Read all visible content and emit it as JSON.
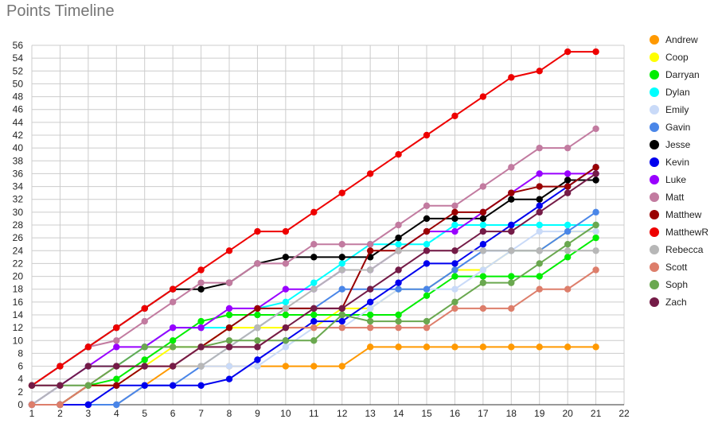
{
  "chart_data": {
    "type": "line",
    "title": "Points Timeline",
    "xlabel": "",
    "ylabel": "",
    "xlim": [
      1,
      22
    ],
    "ylim": [
      0,
      56
    ],
    "x_ticks": [
      1,
      2,
      3,
      4,
      5,
      6,
      7,
      8,
      9,
      10,
      11,
      12,
      13,
      14,
      15,
      16,
      17,
      18,
      19,
      20,
      21,
      22
    ],
    "y_ticks": [
      0,
      2,
      4,
      6,
      8,
      10,
      12,
      14,
      16,
      18,
      20,
      22,
      24,
      26,
      28,
      30,
      32,
      34,
      36,
      38,
      40,
      42,
      44,
      46,
      48,
      50,
      52,
      54,
      56
    ],
    "grid": true,
    "legend_position": "right",
    "x": [
      1,
      2,
      3,
      4,
      5,
      6,
      7,
      8,
      9,
      10,
      11,
      12,
      13,
      14,
      15,
      16,
      17,
      18,
      19,
      20,
      21
    ],
    "series": [
      {
        "name": "Andrew",
        "color": "#ff9900",
        "values": [
          0,
          0,
          0,
          0,
          3,
          6,
          6,
          6,
          6,
          6,
          6,
          6,
          9,
          9,
          9,
          9,
          9,
          9,
          9,
          9,
          9
        ]
      },
      {
        "name": "Coop",
        "color": "#ffff00",
        "values": [
          0,
          0,
          3,
          3,
          6,
          9,
          9,
          12,
          12,
          12,
          12,
          15,
          15,
          18,
          18,
          21,
          21,
          24,
          24,
          27,
          27
        ]
      },
      {
        "name": "Darryan",
        "color": "#00ee00",
        "values": [
          0,
          0,
          3,
          4,
          7,
          10,
          13,
          14,
          14,
          14,
          14,
          14,
          14,
          14,
          17,
          20,
          20,
          20,
          20,
          23,
          26
        ]
      },
      {
        "name": "Dylan",
        "color": "#00ffff",
        "values": [
          0,
          3,
          6,
          6,
          9,
          12,
          12,
          12,
          15,
          16,
          19,
          22,
          25,
          25,
          25,
          28,
          28,
          28,
          28,
          28,
          28
        ]
      },
      {
        "name": "Emily",
        "color": "#c9daf8",
        "values": [
          0,
          0,
          0,
          0,
          3,
          3,
          6,
          6,
          6,
          9,
          12,
          12,
          15,
          18,
          18,
          18,
          21,
          24,
          27,
          27,
          27
        ]
      },
      {
        "name": "Gavin",
        "color": "#4a86e8",
        "values": [
          0,
          0,
          0,
          0,
          3,
          3,
          6,
          9,
          12,
          15,
          15,
          18,
          18,
          18,
          18,
          21,
          24,
          24,
          24,
          27,
          30
        ]
      },
      {
        "name": "Jesse",
        "color": "#000000",
        "values": [
          3,
          6,
          9,
          12,
          15,
          18,
          18,
          19,
          22,
          23,
          23,
          23,
          23,
          26,
          29,
          29,
          29,
          32,
          32,
          35,
          35
        ]
      },
      {
        "name": "Kevin",
        "color": "#0000ee",
        "values": [
          0,
          0,
          0,
          3,
          3,
          3,
          3,
          4,
          7,
          10,
          13,
          13,
          16,
          19,
          22,
          22,
          25,
          28,
          31,
          34,
          37
        ]
      },
      {
        "name": "Luke",
        "color": "#9900ff",
        "values": [
          0,
          3,
          6,
          9,
          9,
          12,
          12,
          15,
          15,
          18,
          18,
          21,
          21,
          24,
          27,
          27,
          30,
          33,
          36,
          36,
          36
        ]
      },
      {
        "name": "Matt",
        "color": "#c27ba0",
        "values": [
          3,
          6,
          9,
          10,
          13,
          16,
          19,
          19,
          22,
          22,
          25,
          25,
          25,
          28,
          31,
          31,
          34,
          37,
          40,
          40,
          43
        ]
      },
      {
        "name": "Matthew",
        "color": "#990000",
        "values": [
          0,
          0,
          3,
          3,
          6,
          6,
          9,
          12,
          15,
          15,
          15,
          15,
          24,
          24,
          27,
          30,
          30,
          33,
          34,
          34,
          37
        ]
      },
      {
        "name": "MatthewR",
        "color": "#ee0000",
        "values": [
          3,
          6,
          9,
          12,
          15,
          18,
          21,
          24,
          27,
          27,
          30,
          33,
          36,
          39,
          42,
          45,
          48,
          51,
          52,
          55,
          55
        ]
      },
      {
        "name": "Rebecca",
        "color": "#b7b7b7",
        "values": [
          0,
          3,
          3,
          6,
          6,
          6,
          6,
          9,
          12,
          15,
          18,
          21,
          21,
          24,
          24,
          24,
          24,
          24,
          24,
          24,
          24
        ]
      },
      {
        "name": "Scott",
        "color": "#dd7e6b",
        "values": [
          0,
          0,
          3,
          6,
          6,
          6,
          9,
          9,
          9,
          12,
          12,
          12,
          12,
          12,
          12,
          15,
          15,
          15,
          18,
          18,
          21
        ]
      },
      {
        "name": "Soph",
        "color": "#6aa84f",
        "values": [
          3,
          3,
          3,
          6,
          9,
          9,
          9,
          10,
          10,
          10,
          10,
          14,
          13,
          13,
          13,
          16,
          19,
          19,
          22,
          25,
          28
        ]
      },
      {
        "name": "Zach",
        "color": "#741b47",
        "values": [
          3,
          3,
          6,
          6,
          6,
          6,
          9,
          9,
          9,
          12,
          15,
          15,
          18,
          21,
          24,
          24,
          27,
          27,
          30,
          33,
          36
        ]
      }
    ]
  }
}
